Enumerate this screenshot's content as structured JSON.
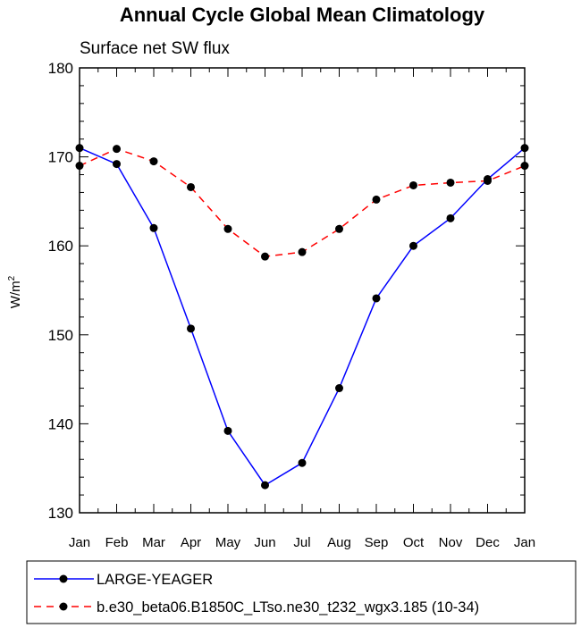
{
  "chart_data": {
    "type": "line",
    "title": "Annual Cycle Global Mean Climatology",
    "subtitle": "Surface net SW flux",
    "ylabel": "W/m",
    "ylabel_sup": "2",
    "xlabel": "",
    "categories": [
      "Jan",
      "Feb",
      "Mar",
      "Apr",
      "May",
      "Jun",
      "Jul",
      "Aug",
      "Sep",
      "Oct",
      "Nov",
      "Dec",
      "Jan"
    ],
    "ylim": [
      130,
      180
    ],
    "yticks": [
      130,
      140,
      150,
      160,
      170,
      180
    ],
    "grid": false,
    "legend_position": "bottom",
    "series": [
      {
        "name": "LARGE-YEAGER",
        "color": "#0000ff",
        "dash": "solid",
        "values": [
          171.0,
          169.2,
          162.0,
          150.7,
          139.2,
          133.1,
          135.6,
          144.0,
          154.1,
          160.0,
          163.1,
          167.5,
          171.0
        ]
      },
      {
        "name": "b.e30_beta06.B1850C_LTso.ne30_t232_wgx3.185 (10-34)",
        "color": "#ff0000",
        "dash": "dashed",
        "values": [
          169.0,
          170.9,
          169.5,
          166.6,
          161.9,
          158.8,
          159.3,
          161.9,
          165.2,
          166.8,
          167.1,
          167.3,
          169.0
        ]
      }
    ]
  }
}
